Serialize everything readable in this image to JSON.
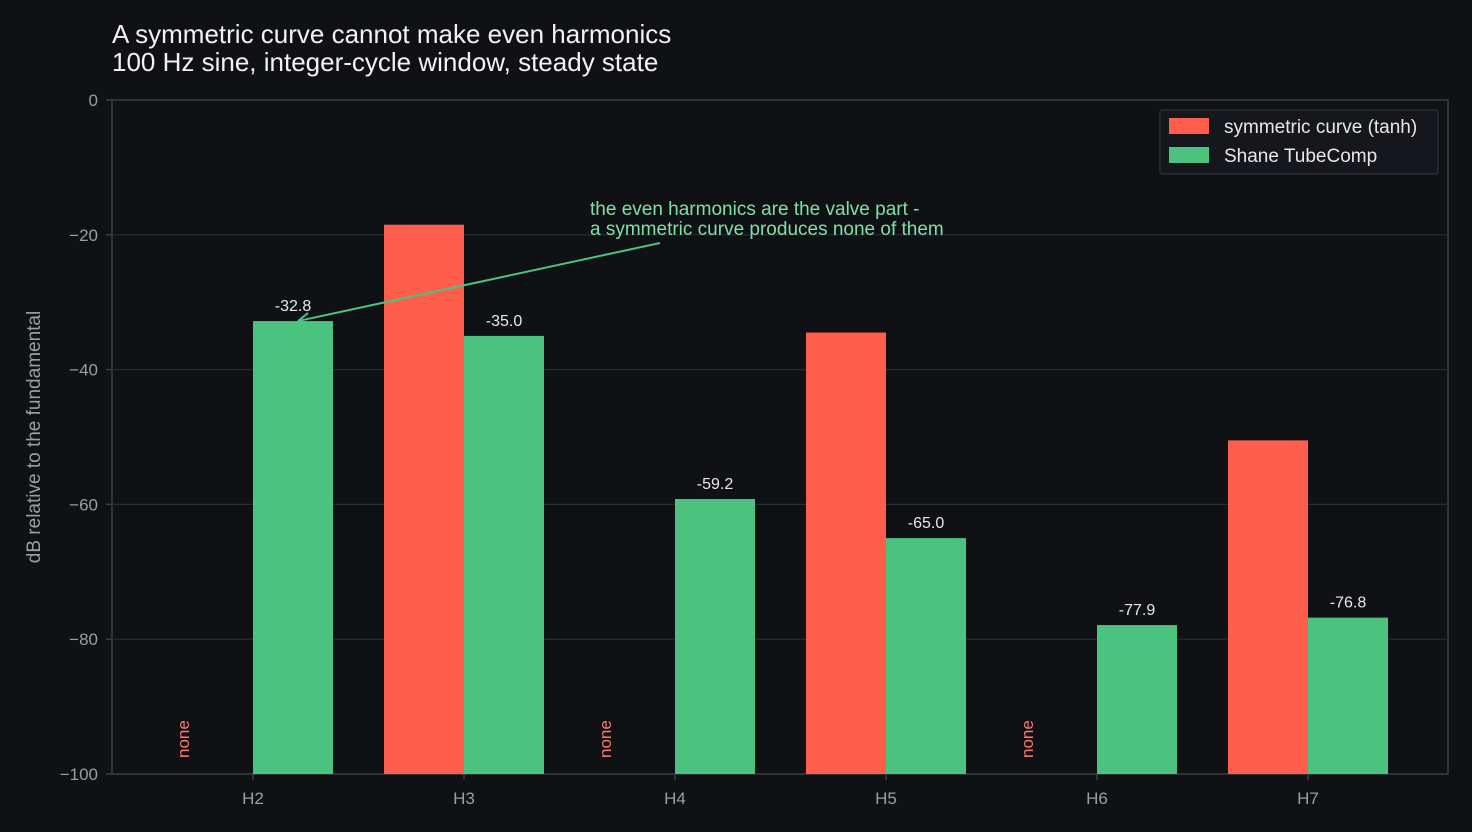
{
  "colors": {
    "background": "#0f1115",
    "symmetric": "#ff5e4d",
    "tubecomp": "#4bc27e",
    "none_label": "#ff7a6b",
    "annotation": "#7fe0a8",
    "grid": "#2a2d33",
    "axis": "#3a3d44"
  },
  "chart_data": {
    "type": "bar",
    "title": "A symmetric curve cannot make even harmonics",
    "subtitle": "100 Hz sine, integer-cycle window, steady state",
    "xlabel": "",
    "ylabel": "dB relative to the fundamental",
    "ylim": [
      -100,
      0
    ],
    "yticks": [
      0,
      -20,
      -40,
      -60,
      -80,
      -100
    ],
    "ytick_labels": [
      "0",
      "−20",
      "−40",
      "−60",
      "−80",
      "−100"
    ],
    "grid": true,
    "legend_position": "top-right",
    "categories": [
      "H2",
      "H3",
      "H4",
      "H5",
      "H6",
      "H7"
    ],
    "series": [
      {
        "name": "symmetric curve (tanh)",
        "color_key": "symmetric",
        "values": [
          null,
          -18.5,
          null,
          -34.5,
          null,
          -50.5
        ],
        "labels": [
          "none",
          "",
          "none",
          "",
          "none",
          ""
        ]
      },
      {
        "name": "Shane TubeComp",
        "color_key": "tubecomp",
        "values": [
          -32.8,
          -35.0,
          -59.2,
          -65.0,
          -77.9,
          -76.8
        ],
        "labels": [
          "-32.8",
          "-35.0",
          "-59.2",
          "-65.0",
          "-77.9",
          "-76.8"
        ]
      }
    ],
    "annotation": {
      "lines": [
        "the even harmonics are the valve part -",
        "a symmetric curve produces none of them"
      ],
      "target_category": "H2",
      "target_value": -32.8
    }
  }
}
